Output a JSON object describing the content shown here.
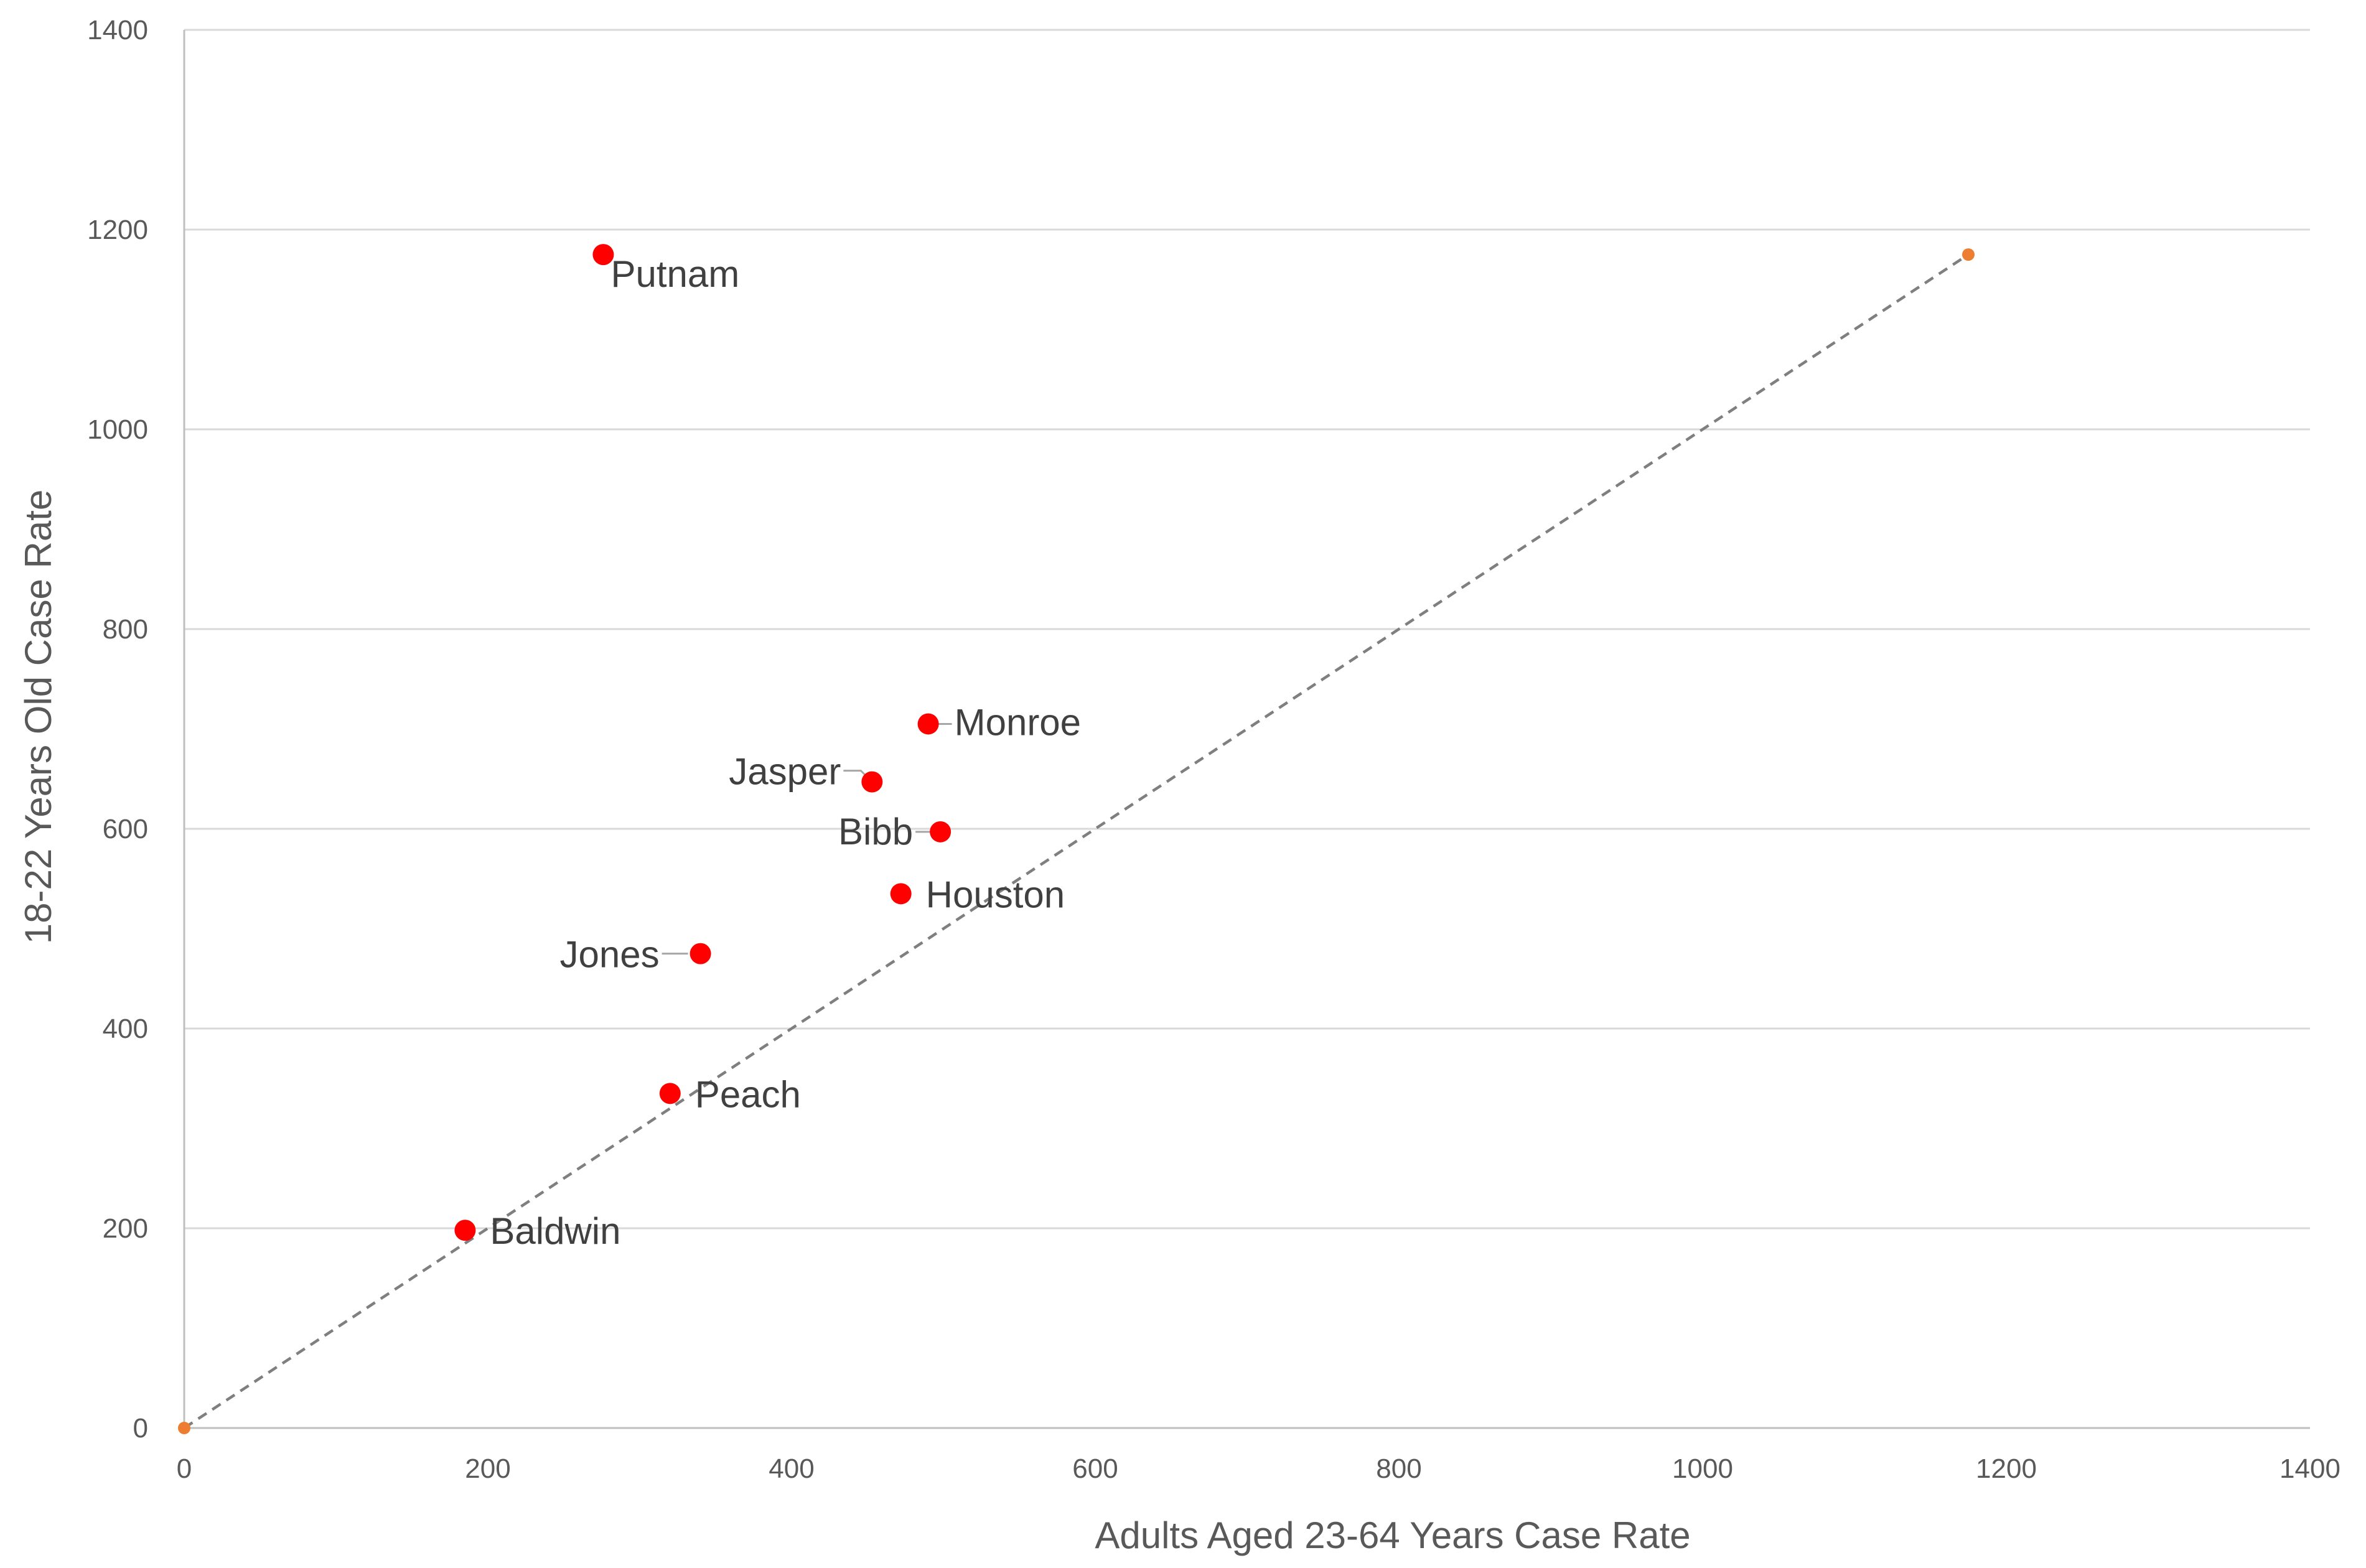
{
  "chart_data": {
    "type": "scatter",
    "title": "",
    "xlabel": "Adults Aged 23-64 Years Case Rate",
    "ylabel": "18-22 Years Old Case Rate",
    "xlim": [
      0,
      1400
    ],
    "ylim": [
      0,
      1400
    ],
    "xticks": [
      "0",
      "200",
      "400",
      "600",
      "800",
      "1000",
      "1200",
      "1400"
    ],
    "yticks": [
      "0",
      "200",
      "400",
      "600",
      "800",
      "1000",
      "1200",
      "1400"
    ],
    "grid": "horizontal",
    "legend": "none",
    "series": [
      {
        "marker_color": "#ff0000",
        "points": [
          {
            "label": "Putnam",
            "x": 276,
            "y": 1175
          },
          {
            "label": "Monroe",
            "x": 490,
            "y": 705
          },
          {
            "label": "Jasper",
            "x": 453,
            "y": 647
          },
          {
            "label": "Bibb",
            "x": 498,
            "y": 597
          },
          {
            "label": "Houston",
            "x": 472,
            "y": 535
          },
          {
            "label": "Jones",
            "x": 340,
            "y": 475
          },
          {
            "label": "Peach",
            "x": 320,
            "y": 335
          },
          {
            "label": "Baldwin",
            "x": 185,
            "y": 198
          }
        ]
      },
      {
        "line_style": "dashed",
        "line_color": "#7f7f7f",
        "marker_color": "#ed7d31",
        "points": [
          {
            "x": 0,
            "y": 0
          },
          {
            "x": 1175,
            "y": 1175
          }
        ]
      }
    ]
  },
  "colors": {
    "gridline": "#d9d9d9",
    "axis": "#bfbfbf",
    "label_leader": "#a6a6a6"
  }
}
